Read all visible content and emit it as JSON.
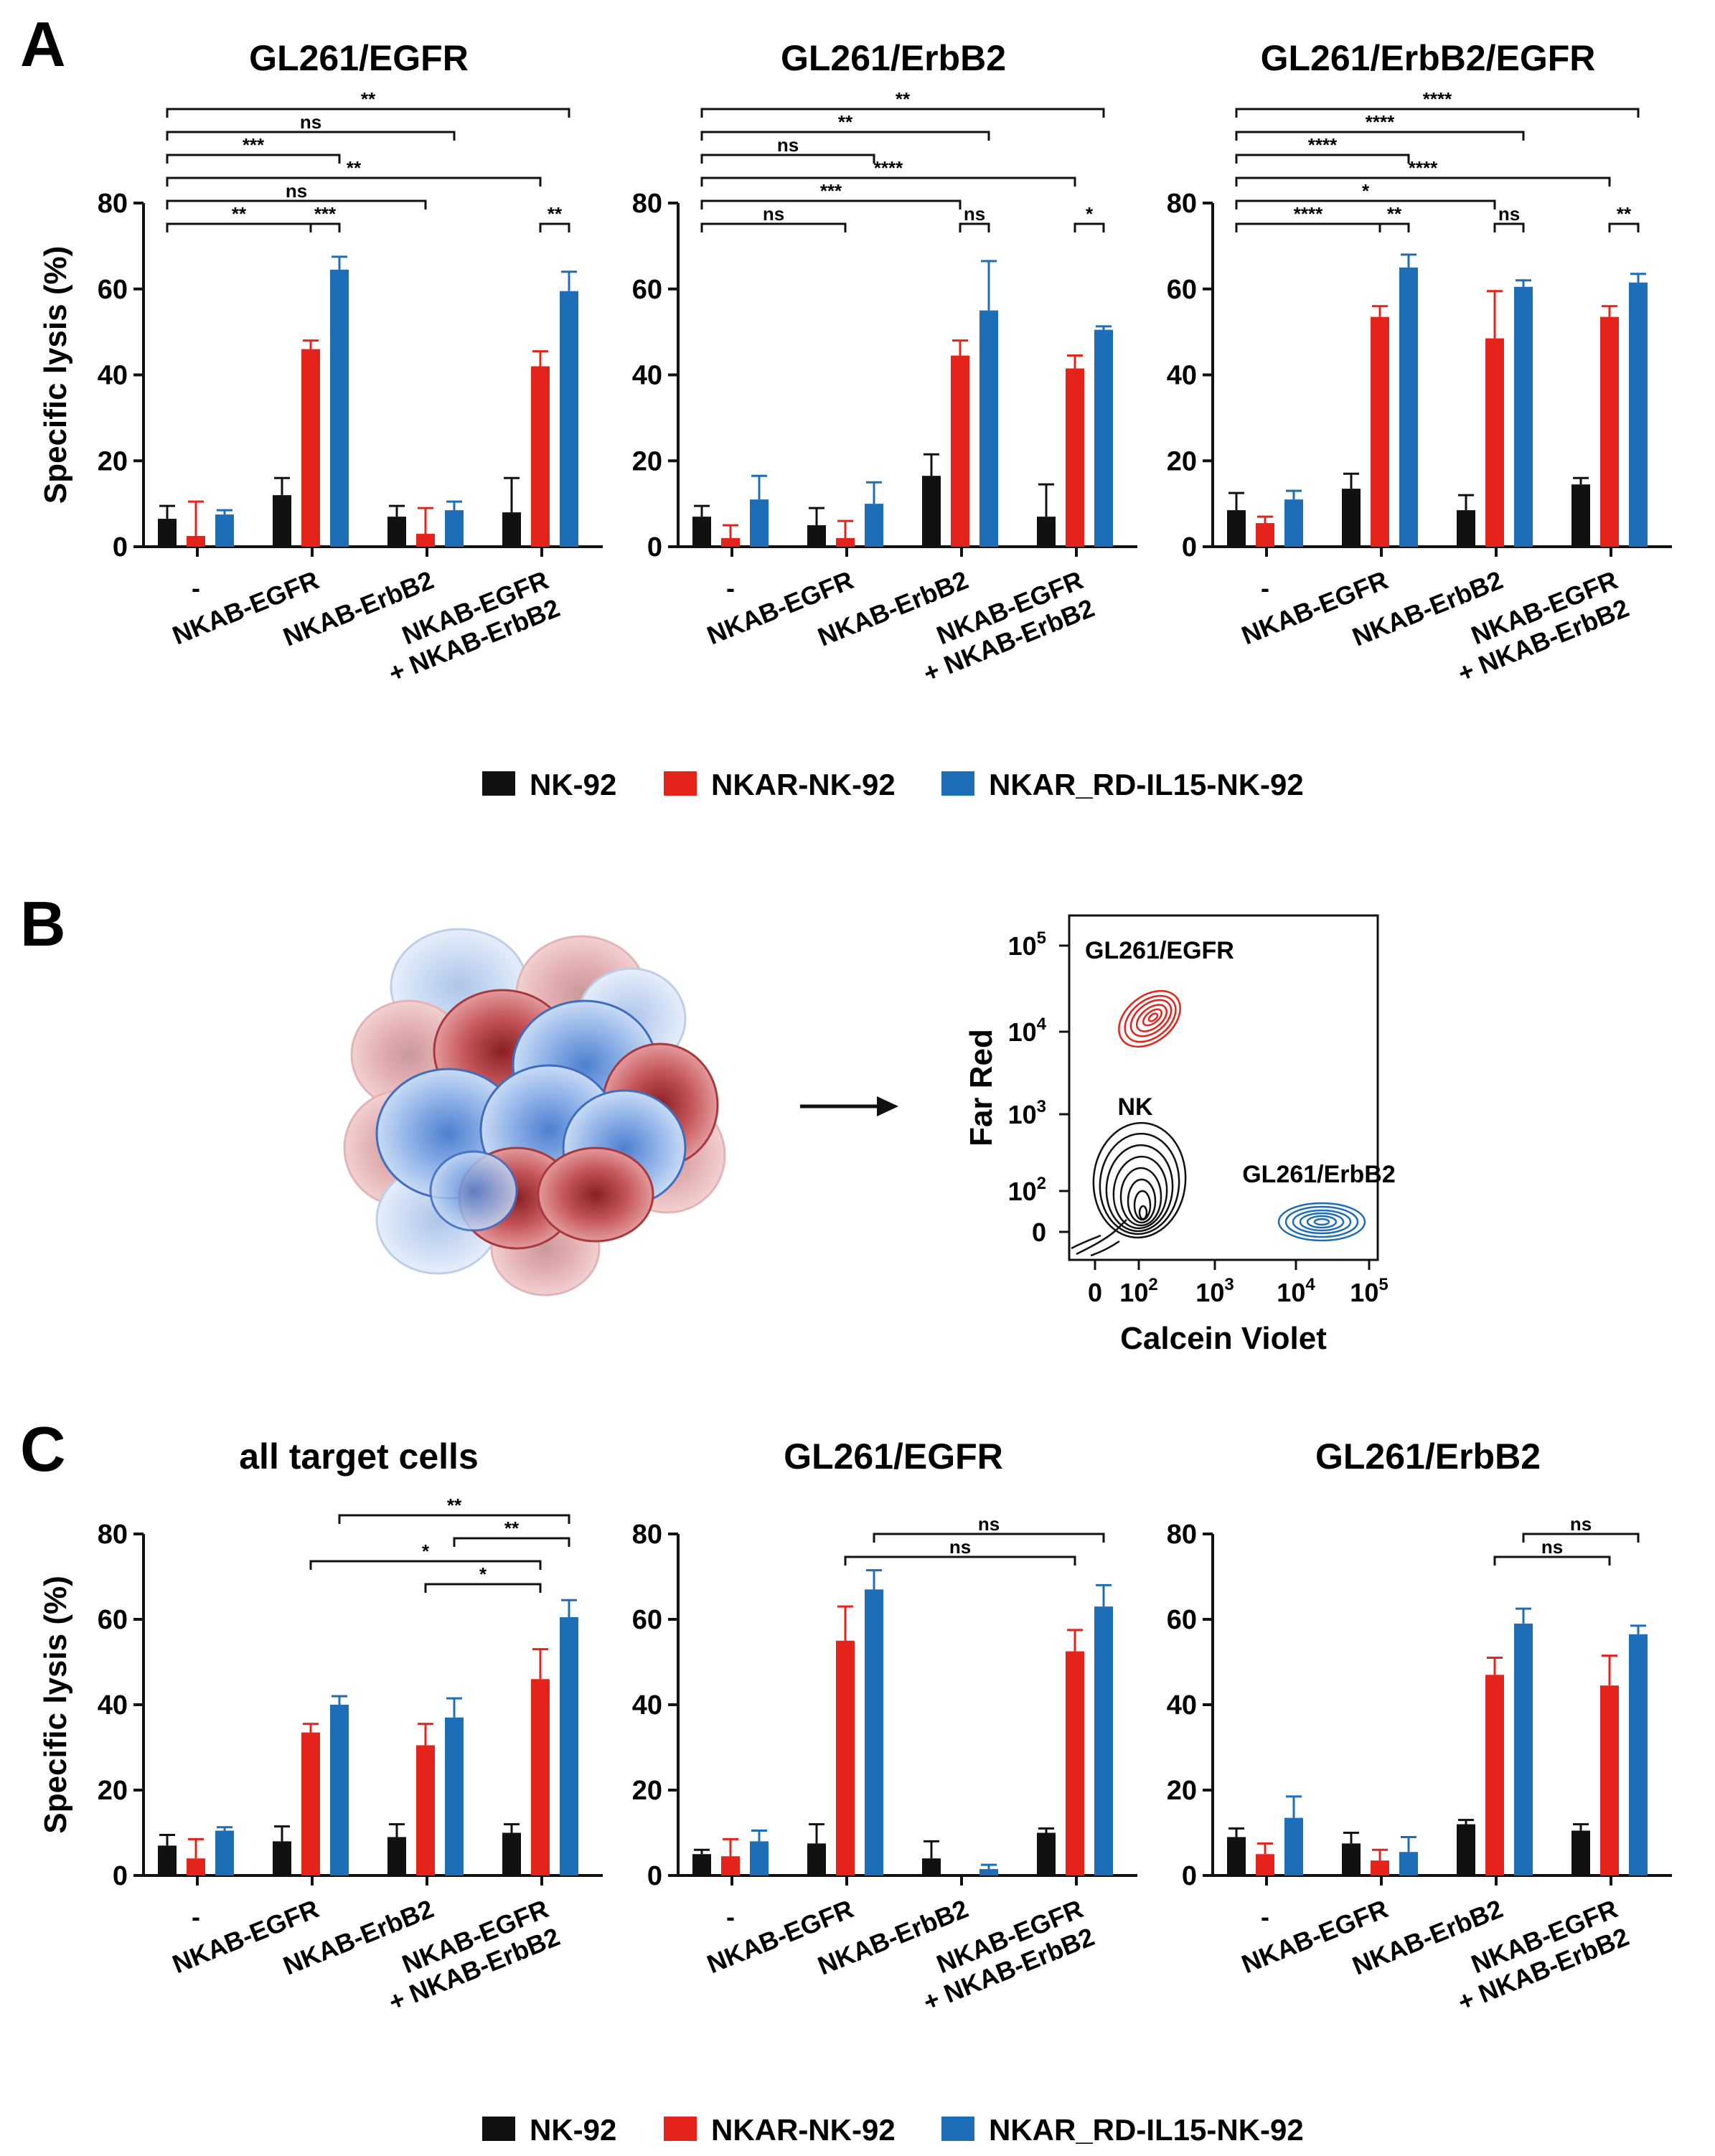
{
  "panel_labels": [
    "A",
    "B",
    "C"
  ],
  "y_axis_label": "Specific lysis  (%)",
  "categories": [
    "-",
    "NKAB-EGFR",
    "NKAB-ErbB2",
    "NKAB-EGFR\n+ NKAB-ErbB2"
  ],
  "legend": [
    {
      "name": "NK-92",
      "color": "#111111"
    },
    {
      "name": "NKAR-NK-92",
      "color": "#e4231b"
    },
    {
      "name": "NKAR_RD-IL15-NK-92",
      "color": "#1d6db7"
    }
  ],
  "chart_data": [
    {
      "id": "A1",
      "type": "bar",
      "title": "GL261/EGFR",
      "ylim": [
        0,
        80
      ],
      "yticks": [
        0,
        20,
        40,
        60,
        80
      ],
      "categories": [
        "-",
        "NKAB-EGFR",
        "NKAB-ErbB2",
        "NKAB-EGFR\n+ NKAB-ErbB2"
      ],
      "series": [
        {
          "name": "NK-92",
          "values": [
            6.5,
            12,
            7,
            8
          ],
          "errors": [
            3,
            4,
            2.5,
            8
          ]
        },
        {
          "name": "NKAR-NK-92",
          "values": [
            2.5,
            46,
            3,
            42
          ],
          "errors": [
            8,
            2,
            6,
            3.5
          ]
        },
        {
          "name": "NKAR_RD-IL15-NK-92",
          "values": [
            7.5,
            64.5,
            8.5,
            59.5
          ],
          "errors": [
            1,
            3,
            2,
            4.5
          ]
        }
      ],
      "annotations": [
        {
          "from": [
            0,
            0
          ],
          "to": [
            3,
            2
          ],
          "label": "**"
        },
        {
          "from": [
            0,
            0
          ],
          "to": [
            2,
            2
          ],
          "label": "ns"
        },
        {
          "from": [
            0,
            0
          ],
          "to": [
            1,
            2
          ],
          "label": "***"
        },
        {
          "from": [
            0,
            0
          ],
          "to": [
            3,
            1
          ],
          "label": "**"
        },
        {
          "from": [
            0,
            0
          ],
          "to": [
            2,
            1
          ],
          "label": "ns"
        },
        {
          "from": [
            0,
            0
          ],
          "to": [
            1,
            1
          ],
          "label": "**"
        },
        {
          "from": [
            1,
            1
          ],
          "to": [
            1,
            2
          ],
          "label": "***"
        },
        {
          "from": [
            3,
            1
          ],
          "to": [
            3,
            2
          ],
          "label": "**"
        }
      ]
    },
    {
      "id": "A2",
      "type": "bar",
      "title": "GL261/ErbB2",
      "ylim": [
        0,
        80
      ],
      "yticks": [
        0,
        20,
        40,
        60,
        80
      ],
      "categories": [
        "-",
        "NKAB-EGFR",
        "NKAB-ErbB2",
        "NKAB-EGFR\n+ NKAB-ErbB2"
      ],
      "series": [
        {
          "name": "NK-92",
          "values": [
            7,
            5,
            16.5,
            7
          ],
          "errors": [
            2.5,
            4,
            5,
            7.5
          ]
        },
        {
          "name": "NKAR-NK-92",
          "values": [
            2,
            2,
            44.5,
            41.5
          ],
          "errors": [
            3,
            4,
            3.5,
            3
          ]
        },
        {
          "name": "NKAR_RD-IL15-NK-92",
          "values": [
            11,
            10,
            55,
            50.5
          ],
          "errors": [
            5.5,
            5,
            11.5,
            0.8
          ]
        }
      ],
      "annotations": [
        {
          "from": [
            0,
            0
          ],
          "to": [
            3,
            2
          ],
          "label": "**"
        },
        {
          "from": [
            0,
            0
          ],
          "to": [
            2,
            2
          ],
          "label": "**"
        },
        {
          "from": [
            0,
            0
          ],
          "to": [
            1,
            2
          ],
          "label": "ns"
        },
        {
          "from": [
            0,
            0
          ],
          "to": [
            3,
            1
          ],
          "label": "****"
        },
        {
          "from": [
            0,
            0
          ],
          "to": [
            2,
            1
          ],
          "label": "***"
        },
        {
          "from": [
            0,
            0
          ],
          "to": [
            1,
            1
          ],
          "label": "ns"
        },
        {
          "from": [
            2,
            1
          ],
          "to": [
            2,
            2
          ],
          "label": "ns"
        },
        {
          "from": [
            3,
            1
          ],
          "to": [
            3,
            2
          ],
          "label": "*"
        }
      ]
    },
    {
      "id": "A3",
      "type": "bar",
      "title": "GL261/ErbB2/EGFR",
      "ylim": [
        0,
        80
      ],
      "yticks": [
        0,
        20,
        40,
        60,
        80
      ],
      "categories": [
        "-",
        "NKAB-EGFR",
        "NKAB-ErbB2",
        "NKAB-EGFR\n+ NKAB-ErbB2"
      ],
      "series": [
        {
          "name": "NK-92",
          "values": [
            8.5,
            13.5,
            8.5,
            14.5
          ],
          "errors": [
            4,
            3.5,
            3.5,
            1.5
          ]
        },
        {
          "name": "NKAR-NK-92",
          "values": [
            5.5,
            53.5,
            48.5,
            53.5
          ],
          "errors": [
            1.5,
            2.5,
            11,
            2.5
          ]
        },
        {
          "name": "NKAR_RD-IL15-NK-92",
          "values": [
            11,
            65,
            60.5,
            61.5
          ],
          "errors": [
            2,
            3,
            1.5,
            2
          ]
        }
      ],
      "annotations": [
        {
          "from": [
            0,
            0
          ],
          "to": [
            3,
            2
          ],
          "label": "****"
        },
        {
          "from": [
            0,
            0
          ],
          "to": [
            2,
            2
          ],
          "label": "****"
        },
        {
          "from": [
            0,
            0
          ],
          "to": [
            1,
            2
          ],
          "label": "****"
        },
        {
          "from": [
            0,
            0
          ],
          "to": [
            3,
            1
          ],
          "label": "****"
        },
        {
          "from": [
            0,
            0
          ],
          "to": [
            2,
            1
          ],
          "label": "*"
        },
        {
          "from": [
            0,
            0
          ],
          "to": [
            1,
            1
          ],
          "label": "****"
        },
        {
          "from": [
            1,
            1
          ],
          "to": [
            1,
            2
          ],
          "label": "**"
        },
        {
          "from": [
            2,
            1
          ],
          "to": [
            2,
            2
          ],
          "label": "ns"
        },
        {
          "from": [
            3,
            1
          ],
          "to": [
            3,
            2
          ],
          "label": "**"
        }
      ]
    },
    {
      "id": "B",
      "type": "contour",
      "xlabel": "Calcein Violet",
      "ylabel": "Far Red",
      "xticks": [
        "0",
        "10^2",
        "10^3",
        "10^4",
        "10^5"
      ],
      "yticks": [
        "0",
        "10^2",
        "10^3",
        "10^4",
        "10^5"
      ],
      "populations": [
        {
          "name": "GL261/EGFR",
          "color": "#e4231b"
        },
        {
          "name": "NK",
          "color": "#111111"
        },
        {
          "name": "GL261/ErbB2",
          "color": "#1d6db7"
        }
      ]
    },
    {
      "id": "C1",
      "type": "bar",
      "title": "all target cells",
      "ylim": [
        0,
        80
      ],
      "yticks": [
        0,
        20,
        40,
        60,
        80
      ],
      "categories": [
        "-",
        "NKAB-EGFR",
        "NKAB-ErbB2",
        "NKAB-EGFR\n+ NKAB-ErbB2"
      ],
      "series": [
        {
          "name": "NK-92",
          "values": [
            7,
            8,
            9,
            10
          ],
          "errors": [
            2.5,
            3.5,
            3,
            2
          ]
        },
        {
          "name": "NKAR-NK-92",
          "values": [
            4,
            33.5,
            30.5,
            46
          ],
          "errors": [
            4.5,
            2,
            5,
            7
          ]
        },
        {
          "name": "NKAR_RD-IL15-NK-92",
          "values": [
            10.5,
            40,
            37,
            60.5
          ],
          "errors": [
            0.8,
            2,
            4.5,
            4
          ]
        }
      ],
      "annotations": [
        {
          "from": [
            1,
            2
          ],
          "to": [
            3,
            2
          ],
          "label": "**"
        },
        {
          "from": [
            2,
            2
          ],
          "to": [
            3,
            2
          ],
          "label": "**"
        },
        {
          "from": [
            1,
            1
          ],
          "to": [
            3,
            1
          ],
          "label": "*"
        },
        {
          "from": [
            2,
            1
          ],
          "to": [
            3,
            1
          ],
          "label": "*"
        }
      ]
    },
    {
      "id": "C2",
      "type": "bar",
      "title": "GL261/EGFR",
      "ylim": [
        0,
        80
      ],
      "yticks": [
        0,
        20,
        40,
        60,
        80
      ],
      "categories": [
        "-",
        "NKAB-EGFR",
        "NKAB-ErbB2",
        "NKAB-EGFR\n+ NKAB-ErbB2"
      ],
      "series": [
        {
          "name": "NK-92",
          "values": [
            5,
            7.5,
            4,
            10
          ],
          "errors": [
            1,
            4.5,
            4,
            1
          ]
        },
        {
          "name": "NKAR-NK-92",
          "values": [
            4.5,
            55,
            0,
            52.5
          ],
          "errors": [
            4,
            8,
            0,
            5
          ]
        },
        {
          "name": "NKAR_RD-IL15-NK-92",
          "values": [
            8,
            67,
            1.5,
            63
          ],
          "errors": [
            2.5,
            4.5,
            1,
            5
          ]
        }
      ],
      "annotations": [
        {
          "from": [
            1,
            2
          ],
          "to": [
            3,
            2
          ],
          "label": "ns"
        },
        {
          "from": [
            1,
            1
          ],
          "to": [
            3,
            1
          ],
          "label": "ns"
        }
      ]
    },
    {
      "id": "C3",
      "type": "bar",
      "title": "GL261/ErbB2",
      "ylim": [
        0,
        80
      ],
      "yticks": [
        0,
        20,
        40,
        60,
        80
      ],
      "categories": [
        "-",
        "NKAB-EGFR",
        "NKAB-ErbB2",
        "NKAB-EGFR\n+ NKAB-ErbB2"
      ],
      "series": [
        {
          "name": "NK-92",
          "values": [
            9,
            7.5,
            12,
            10.5
          ],
          "errors": [
            2,
            2.5,
            1,
            1.5
          ]
        },
        {
          "name": "NKAR-NK-92",
          "values": [
            5,
            3.5,
            47,
            44.5
          ],
          "errors": [
            2.5,
            2.5,
            4,
            7
          ]
        },
        {
          "name": "NKAR_RD-IL15-NK-92",
          "values": [
            13.5,
            5.5,
            59,
            56.5
          ],
          "errors": [
            5,
            3.5,
            3.5,
            2
          ]
        }
      ],
      "annotations": [
        {
          "from": [
            2,
            2
          ],
          "to": [
            3,
            2
          ],
          "label": "ns"
        },
        {
          "from": [
            2,
            1
          ],
          "to": [
            3,
            1
          ],
          "label": "ns"
        }
      ]
    }
  ]
}
